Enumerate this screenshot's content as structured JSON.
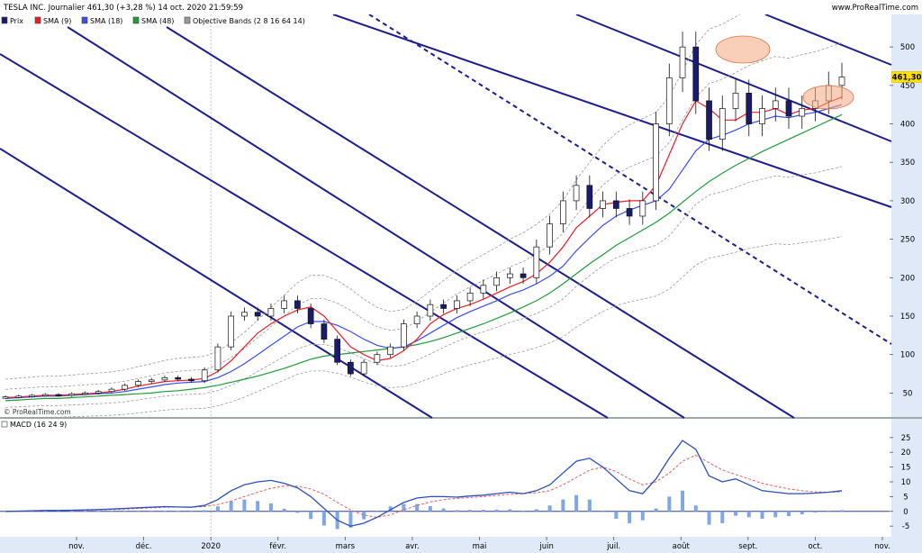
{
  "header": {
    "title": "TESLA INC. Journalier 461,30 (+3,28 %) 14 oct. 2020 21:59:59",
    "brand": "www.ProRealTime.com",
    "watermark": "© ProRealTime.com"
  },
  "colors": {
    "price_body_up": "#ffffff",
    "price_body_down": "#1a1a6e",
    "sma9": "#e8202a",
    "sma18": "#3a4ee8",
    "sma48": "#1f9a3a",
    "bands": "#9a9a9a",
    "channel": "#1c1c8c",
    "highlight": "#f3a880",
    "macd_line": "#2b4fb8",
    "macd_signal": "#e06060",
    "histogram": "#7fa7e6",
    "axis_bg": "#dfe9f7"
  },
  "chart_data": [
    {
      "type": "candlestick",
      "name": "price",
      "legend": [
        {
          "label": "Prix",
          "color": "#1a1a6e"
        },
        {
          "label": "SMA (9)",
          "color": "#e8202a"
        },
        {
          "label": "SMA (18)",
          "color": "#3a4ee8"
        },
        {
          "label": "SMA (48)",
          "color": "#1f9a3a"
        },
        {
          "label": "Objective Bands (2 8 16 64 14)",
          "color": "#9a9a9a"
        }
      ],
      "y_ticks": [
        50,
        100,
        150,
        200,
        250,
        300,
        350,
        400,
        450,
        500
      ],
      "ylim": [
        20,
        540
      ],
      "x_labels": [
        "nov.",
        "déc.",
        "2020",
        "févr.",
        "mars",
        "avr.",
        "mai",
        "juin",
        "juil.",
        "août",
        "sept.",
        "oct.",
        "nov."
      ],
      "last_price_label": "461,30",
      "close": [
        45,
        46,
        47,
        48,
        47,
        49,
        50,
        52,
        55,
        60,
        65,
        67,
        70,
        68,
        66,
        80,
        110,
        150,
        155,
        150,
        160,
        170,
        160,
        140,
        120,
        90,
        75,
        90,
        100,
        110,
        140,
        150,
        165,
        160,
        170,
        180,
        190,
        200,
        205,
        200,
        240,
        270,
        300,
        320,
        290,
        300,
        290,
        280,
        300,
        400,
        460,
        500,
        430,
        380,
        420,
        440,
        400,
        420,
        430,
        410,
        420,
        430,
        450,
        461
      ],
      "sma9": [
        44,
        45,
        46,
        47,
        47,
        48,
        49,
        50,
        52,
        55,
        59,
        62,
        65,
        66,
        67,
        69,
        78,
        92,
        110,
        128,
        140,
        150,
        158,
        162,
        150,
        130,
        110,
        100,
        92,
        95,
        105,
        120,
        140,
        152,
        160,
        165,
        172,
        180,
        188,
        195,
        205,
        220,
        240,
        265,
        280,
        295,
        298,
        300,
        300,
        320,
        360,
        400,
        430,
        420,
        405,
        405,
        415,
        415,
        420,
        412,
        418,
        420,
        428,
        435
      ],
      "sma18": [
        43,
        44,
        45,
        46,
        46,
        47,
        48,
        49,
        50,
        52,
        55,
        58,
        61,
        63,
        64,
        65,
        70,
        78,
        88,
        100,
        112,
        124,
        136,
        143,
        143,
        138,
        130,
        120,
        112,
        108,
        110,
        118,
        128,
        138,
        148,
        156,
        163,
        170,
        178,
        184,
        192,
        202,
        215,
        235,
        252,
        268,
        280,
        288,
        294,
        300,
        315,
        340,
        365,
        380,
        385,
        392,
        400,
        405,
        410,
        408,
        412,
        415,
        420,
        425
      ],
      "sma48": [
        40,
        41,
        42,
        43,
        43,
        44,
        45,
        46,
        47,
        48,
        49,
        50,
        52,
        53,
        55,
        57,
        60,
        64,
        68,
        72,
        77,
        82,
        88,
        94,
        98,
        100,
        102,
        104,
        106,
        108,
        110,
        113,
        117,
        122,
        128,
        134,
        140,
        147,
        154,
        162,
        170,
        180,
        192,
        205,
        218,
        230,
        242,
        252,
        262,
        272,
        284,
        298,
        312,
        325,
        336,
        346,
        355,
        364,
        372,
        380,
        388,
        396,
        404,
        412
      ],
      "objective_band_annotations": [
        "peak highlight ~500",
        "recent highlight ~440"
      ]
    },
    {
      "type": "line",
      "name": "macd",
      "label": "MACD (16 24 9)",
      "y_ticks": [
        25,
        20,
        15,
        10,
        5,
        0,
        -5
      ],
      "ylim": [
        -8,
        28
      ],
      "macd": [
        0,
        0.1,
        0.2,
        0.3,
        0.3,
        0.4,
        0.5,
        0.6,
        0.8,
        1.0,
        1.2,
        1.4,
        1.6,
        1.5,
        1.4,
        2.0,
        4.0,
        7.0,
        9.0,
        10.0,
        10.5,
        9.5,
        8.0,
        5.0,
        1.0,
        -3.0,
        -5.0,
        -4.0,
        -2.0,
        0.5,
        3.0,
        4.5,
        5.0,
        5.0,
        4.8,
        5.2,
        5.5,
        6.0,
        6.5,
        6.0,
        7.0,
        9.0,
        13.0,
        17.0,
        18.0,
        15.0,
        11.0,
        7.0,
        6.0,
        11.0,
        18.0,
        24.0,
        21.0,
        12.0,
        10.0,
        11.0,
        9.0,
        7.0,
        6.5,
        6.0,
        6.0,
        6.2,
        6.5,
        7.0
      ],
      "signal": [
        0,
        0.05,
        0.1,
        0.2,
        0.25,
        0.3,
        0.4,
        0.5,
        0.6,
        0.8,
        1.0,
        1.2,
        1.4,
        1.45,
        1.45,
        1.6,
        2.3,
        3.5,
        5.0,
        6.5,
        7.8,
        8.6,
        8.5,
        7.6,
        5.8,
        3.0,
        0.5,
        -1.3,
        -2.0,
        -1.2,
        0.5,
        2.0,
        3.2,
        4.0,
        4.4,
        4.7,
        5.0,
        5.4,
        5.8,
        6.0,
        6.3,
        7.0,
        9.0,
        11.5,
        14.0,
        15.0,
        13.5,
        11.0,
        9.0,
        10.0,
        13.0,
        17.0,
        19.0,
        16.5,
        14.0,
        12.5,
        11.0,
        9.5,
        8.5,
        7.6,
        7.0,
        6.6,
        6.5,
        6.6
      ]
    }
  ]
}
